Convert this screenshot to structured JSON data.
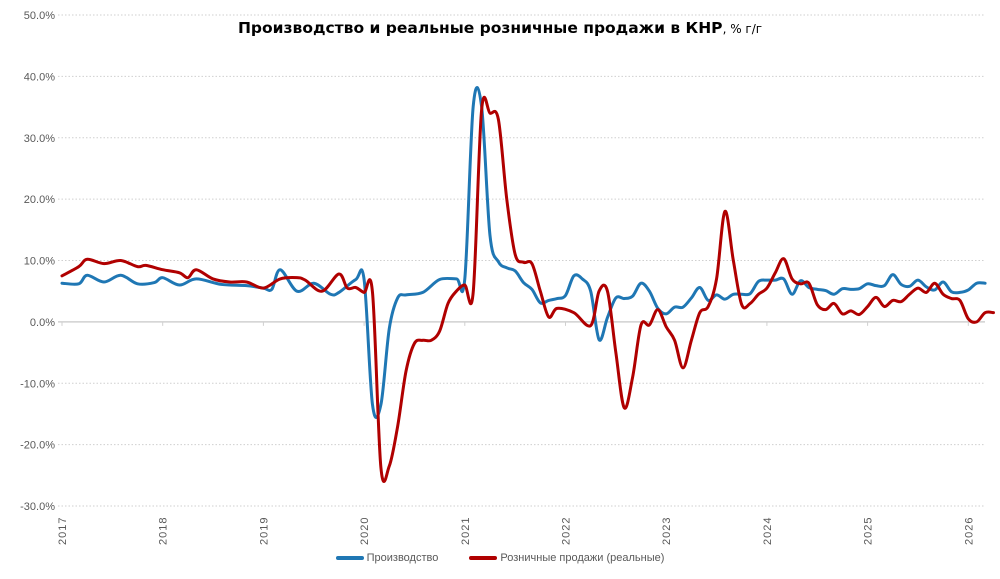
{
  "chart_data": {
    "type": "line",
    "title": "Производство и реальные розничные продажи в КНР",
    "title_suffix": ", % г/г",
    "xlabel": "",
    "ylabel": "",
    "ylim": [
      -30,
      50
    ],
    "yticks": [
      "50.0%",
      "40.0%",
      "30.0%",
      "20.0%",
      "10.0%",
      "0.0%",
      "-10.0%",
      "-20.0%",
      "-30.0%"
    ],
    "ytick_values": [
      50,
      40,
      30,
      20,
      10,
      0,
      -10,
      -20,
      -30
    ],
    "xticks": [
      "2017",
      "2018",
      "2019",
      "2020",
      "2021",
      "2022",
      "2023",
      "2024",
      "2025",
      "2026"
    ],
    "grid": true,
    "legend_placement": "bottom",
    "series": [
      {
        "name": "Производство",
        "color": "#1f77b4",
        "points": [
          [
            "2017-01",
            6.3
          ],
          [
            "2017-03",
            6.2
          ],
          [
            "2017-04",
            7.6
          ],
          [
            "2017-06",
            6.5
          ],
          [
            "2017-08",
            7.6
          ],
          [
            "2017-10",
            6.2
          ],
          [
            "2017-12",
            6.4
          ],
          [
            "2018-01",
            7.2
          ],
          [
            "2018-03",
            6.0
          ],
          [
            "2018-05",
            7.0
          ],
          [
            "2018-08",
            6.1
          ],
          [
            "2018-11",
            5.9
          ],
          [
            "2019-01",
            5.5
          ],
          [
            "2019-02",
            5.3
          ],
          [
            "2019-03",
            8.5
          ],
          [
            "2019-05",
            5.0
          ],
          [
            "2019-07",
            6.3
          ],
          [
            "2019-09",
            4.5
          ],
          [
            "2019-10",
            4.8
          ],
          [
            "2019-12",
            6.9
          ],
          [
            "2020-01",
            6.9
          ],
          [
            "2020-02",
            -13.5
          ],
          [
            "2020-03",
            -13.5
          ],
          [
            "2020-04",
            -1.1
          ],
          [
            "2020-05",
            3.9
          ],
          [
            "2020-06",
            4.4
          ],
          [
            "2020-08",
            4.8
          ],
          [
            "2020-10",
            6.9
          ],
          [
            "2020-12",
            7.0
          ],
          [
            "2021-01",
            7.0
          ],
          [
            "2021-02",
            35.1
          ],
          [
            "2021-03",
            35.1
          ],
          [
            "2021-04",
            14.1
          ],
          [
            "2021-05",
            9.8
          ],
          [
            "2021-06",
            8.8
          ],
          [
            "2021-07",
            8.3
          ],
          [
            "2021-08",
            6.4
          ],
          [
            "2021-09",
            5.3
          ],
          [
            "2021-10",
            3.1
          ],
          [
            "2021-11",
            3.5
          ],
          [
            "2021-12",
            3.8
          ],
          [
            "2022-01",
            4.3
          ],
          [
            "2022-02",
            7.5
          ],
          [
            "2022-03",
            7.0
          ],
          [
            "2022-04",
            5.0
          ],
          [
            "2022-05",
            -2.9
          ],
          [
            "2022-06",
            0.7
          ],
          [
            "2022-07",
            3.9
          ],
          [
            "2022-08",
            3.8
          ],
          [
            "2022-09",
            4.2
          ],
          [
            "2022-10",
            6.3
          ],
          [
            "2022-11",
            5.0
          ],
          [
            "2022-12",
            2.2
          ],
          [
            "2023-01",
            1.3
          ],
          [
            "2023-02",
            2.4
          ],
          [
            "2023-03",
            2.4
          ],
          [
            "2023-04",
            3.9
          ],
          [
            "2023-05",
            5.6
          ],
          [
            "2023-06",
            3.5
          ],
          [
            "2023-07",
            4.4
          ],
          [
            "2023-08",
            3.7
          ],
          [
            "2023-09",
            4.5
          ],
          [
            "2023-10",
            4.5
          ],
          [
            "2023-11",
            4.6
          ],
          [
            "2023-12",
            6.6
          ],
          [
            "2024-01",
            6.8
          ],
          [
            "2024-02",
            6.8
          ],
          [
            "2024-03",
            7.0
          ],
          [
            "2024-04",
            4.5
          ],
          [
            "2024-05",
            6.7
          ],
          [
            "2024-06",
            5.6
          ],
          [
            "2024-07",
            5.3
          ],
          [
            "2024-08",
            5.1
          ],
          [
            "2024-09",
            4.5
          ],
          [
            "2024-10",
            5.4
          ],
          [
            "2024-11",
            5.3
          ],
          [
            "2024-12",
            5.4
          ],
          [
            "2025-01",
            6.2
          ],
          [
            "2025-02",
            5.9
          ],
          [
            "2025-03",
            5.9
          ],
          [
            "2025-04",
            7.7
          ],
          [
            "2025-05",
            6.1
          ],
          [
            "2025-06",
            5.8
          ],
          [
            "2025-07",
            6.8
          ],
          [
            "2025-08",
            5.7
          ],
          [
            "2025-09",
            5.2
          ],
          [
            "2025-10",
            6.5
          ],
          [
            "2025-11",
            4.9
          ],
          [
            "2025-12",
            4.8
          ],
          [
            "2026-01",
            5.2
          ],
          [
            "2026-02",
            6.3
          ],
          [
            "2026-03",
            6.3
          ]
        ]
      },
      {
        "name": "Розничные продажи (реальные)",
        "color": "#b00000",
        "points": [
          [
            "2017-01",
            7.5
          ],
          [
            "2017-03",
            9.0
          ],
          [
            "2017-04",
            10.2
          ],
          [
            "2017-06",
            9.5
          ],
          [
            "2017-08",
            10.0
          ],
          [
            "2017-10",
            9.0
          ],
          [
            "2017-11",
            9.2
          ],
          [
            "2018-01",
            8.5
          ],
          [
            "2018-03",
            8.0
          ],
          [
            "2018-04",
            7.2
          ],
          [
            "2018-05",
            8.5
          ],
          [
            "2018-07",
            7.0
          ],
          [
            "2018-09",
            6.5
          ],
          [
            "2018-11",
            6.5
          ],
          [
            "2019-01",
            5.5
          ],
          [
            "2019-03",
            7.0
          ],
          [
            "2019-05",
            7.2
          ],
          [
            "2019-06",
            6.8
          ],
          [
            "2019-08",
            5.0
          ],
          [
            "2019-10",
            7.8
          ],
          [
            "2019-11",
            5.5
          ],
          [
            "2019-12",
            5.6
          ],
          [
            "2020-01",
            4.8
          ],
          [
            "2020-02",
            4.8
          ],
          [
            "2020-03",
            -23.7
          ],
          [
            "2020-04",
            -23.5
          ],
          [
            "2020-05",
            -17.0
          ],
          [
            "2020-06",
            -8.0
          ],
          [
            "2020-07",
            -3.5
          ],
          [
            "2020-08",
            -3.0
          ],
          [
            "2020-09",
            -3.0
          ],
          [
            "2020-10",
            -1.5
          ],
          [
            "2020-11",
            3.0
          ],
          [
            "2020-12",
            5.0
          ],
          [
            "2021-01",
            6.0
          ],
          [
            "2021-02",
            4.8
          ],
          [
            "2021-03",
            34.5
          ],
          [
            "2021-04",
            34.0
          ],
          [
            "2021-05",
            33.0
          ],
          [
            "2021-06",
            20.0
          ],
          [
            "2021-07",
            11.0
          ],
          [
            "2021-08",
            9.7
          ],
          [
            "2021-09",
            9.5
          ],
          [
            "2021-10",
            5.0
          ],
          [
            "2021-11",
            0.8
          ],
          [
            "2021-12",
            2.2
          ],
          [
            "2022-02",
            1.5
          ],
          [
            "2022-04",
            -0.6
          ],
          [
            "2022-05",
            5.0
          ],
          [
            "2022-06",
            5.0
          ],
          [
            "2022-07",
            -5.0
          ],
          [
            "2022-08",
            -14.0
          ],
          [
            "2022-09",
            -9.0
          ],
          [
            "2022-10",
            -0.5
          ],
          [
            "2022-11",
            -0.5
          ],
          [
            "2022-12",
            2.0
          ],
          [
            "2023-01",
            -0.8
          ],
          [
            "2023-02",
            -3.0
          ],
          [
            "2023-03",
            -7.5
          ],
          [
            "2023-04",
            -3.0
          ],
          [
            "2023-05",
            1.5
          ],
          [
            "2023-06",
            2.5
          ],
          [
            "2023-07",
            7.0
          ],
          [
            "2023-08",
            18.0
          ],
          [
            "2023-09",
            10.0
          ],
          [
            "2023-10",
            2.8
          ],
          [
            "2023-11",
            3.0
          ],
          [
            "2023-12",
            4.5
          ],
          [
            "2024-01",
            5.5
          ],
          [
            "2024-02",
            8.0
          ],
          [
            "2024-03",
            10.3
          ],
          [
            "2024-04",
            7.0
          ],
          [
            "2024-05",
            6.2
          ],
          [
            "2024-06",
            6.3
          ],
          [
            "2024-07",
            2.8
          ],
          [
            "2024-08",
            2.0
          ],
          [
            "2024-09",
            3.0
          ],
          [
            "2024-10",
            1.3
          ],
          [
            "2024-11",
            1.8
          ],
          [
            "2024-12",
            1.2
          ],
          [
            "2025-01",
            2.5
          ],
          [
            "2025-02",
            4.0
          ],
          [
            "2025-03",
            2.5
          ],
          [
            "2025-04",
            3.5
          ],
          [
            "2025-05",
            3.3
          ],
          [
            "2025-06",
            4.5
          ],
          [
            "2025-07",
            5.5
          ],
          [
            "2025-08",
            4.8
          ],
          [
            "2025-09",
            6.3
          ],
          [
            "2025-10",
            4.5
          ],
          [
            "2025-11",
            3.8
          ],
          [
            "2025-12",
            3.5
          ],
          [
            "2026-01",
            0.5
          ],
          [
            "2026-02",
            0.0
          ],
          [
            "2026-03",
            1.5
          ],
          [
            "2026-04",
            1.5
          ]
        ]
      }
    ]
  }
}
